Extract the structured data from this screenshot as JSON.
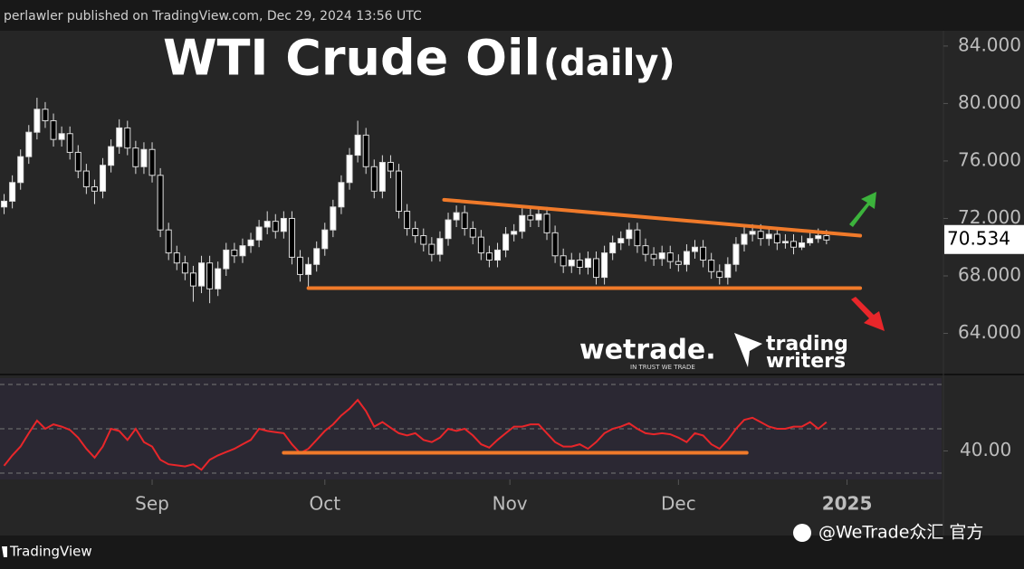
{
  "header": "perlawler published on TradingView.com, Dec 29, 2024 13:56 UTC",
  "footer": "TradingView",
  "watermark": "@WeTrade众汇 官方",
  "logos": {
    "wetrade": "wetrade.",
    "wetrade_tagline": "IN TRUST WE TRADE",
    "writers_1": "trading",
    "writers_2": "writers"
  },
  "chart_data": {
    "type": "candlestick",
    "title": "WTI Crude Oil",
    "subtitle": "(daily)",
    "ohlc": [
      [
        72.8,
        73.7,
        72.3,
        73.2
      ],
      [
        73.2,
        75.0,
        72.7,
        74.5
      ],
      [
        74.5,
        76.8,
        74.0,
        76.3
      ],
      [
        76.3,
        78.5,
        75.8,
        78.0
      ],
      [
        78.0,
        80.4,
        77.5,
        79.6
      ],
      [
        79.6,
        80.1,
        78.3,
        78.8
      ],
      [
        78.8,
        79.3,
        77.0,
        77.5
      ],
      [
        77.5,
        78.4,
        77.0,
        77.9
      ],
      [
        77.9,
        78.4,
        76.1,
        76.6
      ],
      [
        76.6,
        77.1,
        74.8,
        75.3
      ],
      [
        75.3,
        75.8,
        73.7,
        74.2
      ],
      [
        74.2,
        74.7,
        73.0,
        73.9
      ],
      [
        73.9,
        76.2,
        73.4,
        75.7
      ],
      [
        75.7,
        77.5,
        75.2,
        77.0
      ],
      [
        77.0,
        78.9,
        76.5,
        78.3
      ],
      [
        78.3,
        78.8,
        76.4,
        76.9
      ],
      [
        76.9,
        77.4,
        75.1,
        75.6
      ],
      [
        75.6,
        77.3,
        75.1,
        76.8
      ],
      [
        76.8,
        77.3,
        74.5,
        75.0
      ],
      [
        75.0,
        75.5,
        70.7,
        71.2
      ],
      [
        71.2,
        71.7,
        69.1,
        69.6
      ],
      [
        69.6,
        70.1,
        68.4,
        68.9
      ],
      [
        68.9,
        69.4,
        67.7,
        68.2
      ],
      [
        68.2,
        68.7,
        66.2,
        67.3
      ],
      [
        67.3,
        69.4,
        66.8,
        68.9
      ],
      [
        68.9,
        69.4,
        66.1,
        67.1
      ],
      [
        67.1,
        69.0,
        66.6,
        68.5
      ],
      [
        68.5,
        70.3,
        68.0,
        69.8
      ],
      [
        69.8,
        70.3,
        68.9,
        69.4
      ],
      [
        69.4,
        70.6,
        68.9,
        70.1
      ],
      [
        70.1,
        71.0,
        69.6,
        70.5
      ],
      [
        70.5,
        71.9,
        70.0,
        71.4
      ],
      [
        71.4,
        72.5,
        70.9,
        71.8
      ],
      [
        71.8,
        72.3,
        70.6,
        71.1
      ],
      [
        71.1,
        72.5,
        70.6,
        72.0
      ],
      [
        72.0,
        72.5,
        68.8,
        69.3
      ],
      [
        69.3,
        69.8,
        67.6,
        68.1
      ],
      [
        68.1,
        69.3,
        67.1,
        68.8
      ],
      [
        68.8,
        70.4,
        68.3,
        69.9
      ],
      [
        69.9,
        71.7,
        69.4,
        71.2
      ],
      [
        71.2,
        73.3,
        70.7,
        72.8
      ],
      [
        72.8,
        75.0,
        72.3,
        74.5
      ],
      [
        74.5,
        76.9,
        74.0,
        76.4
      ],
      [
        76.4,
        78.8,
        75.9,
        77.8
      ],
      [
        77.8,
        78.3,
        75.1,
        75.6
      ],
      [
        75.6,
        76.1,
        73.4,
        73.9
      ],
      [
        73.9,
        76.4,
        73.4,
        75.9
      ],
      [
        75.9,
        76.4,
        74.8,
        75.3
      ],
      [
        75.3,
        75.8,
        72.0,
        72.5
      ],
      [
        72.5,
        73.0,
        70.8,
        71.3
      ],
      [
        71.3,
        71.8,
        70.3,
        70.8
      ],
      [
        70.8,
        71.3,
        69.7,
        70.2
      ],
      [
        70.2,
        70.7,
        69.0,
        69.5
      ],
      [
        69.5,
        71.1,
        69.0,
        70.6
      ],
      [
        70.6,
        72.4,
        70.1,
        71.9
      ],
      [
        71.9,
        72.9,
        71.4,
        72.4
      ],
      [
        72.4,
        72.9,
        70.8,
        71.3
      ],
      [
        71.3,
        71.8,
        70.2,
        70.7
      ],
      [
        70.7,
        71.2,
        69.1,
        69.6
      ],
      [
        69.6,
        70.1,
        68.6,
        69.1
      ],
      [
        69.1,
        70.3,
        68.6,
        69.8
      ],
      [
        69.8,
        71.4,
        69.3,
        70.9
      ],
      [
        70.9,
        71.6,
        70.4,
        71.1
      ],
      [
        71.1,
        72.7,
        70.6,
        72.2
      ],
      [
        72.2,
        72.7,
        71.4,
        71.9
      ],
      [
        71.9,
        72.8,
        71.4,
        72.3
      ],
      [
        72.3,
        72.8,
        70.5,
        71.0
      ],
      [
        71.0,
        71.5,
        68.9,
        69.4
      ],
      [
        69.4,
        69.9,
        68.2,
        68.7
      ],
      [
        68.7,
        69.6,
        68.2,
        69.1
      ],
      [
        69.1,
        69.6,
        68.1,
        68.6
      ],
      [
        68.6,
        69.7,
        68.1,
        69.2
      ],
      [
        69.2,
        69.7,
        67.4,
        67.9
      ],
      [
        67.9,
        70.1,
        67.4,
        69.6
      ],
      [
        69.6,
        70.8,
        69.1,
        70.3
      ],
      [
        70.3,
        71.1,
        69.8,
        70.6
      ],
      [
        70.6,
        71.7,
        70.1,
        71.2
      ],
      [
        71.2,
        71.7,
        69.6,
        70.1
      ],
      [
        70.1,
        70.6,
        69.0,
        69.5
      ],
      [
        69.5,
        70.0,
        68.7,
        69.2
      ],
      [
        69.2,
        70.1,
        68.7,
        69.6
      ],
      [
        69.6,
        70.1,
        68.5,
        69.0
      ],
      [
        69.0,
        69.5,
        68.3,
        68.8
      ],
      [
        68.8,
        70.2,
        68.3,
        69.7
      ],
      [
        69.7,
        70.5,
        69.2,
        70.0
      ],
      [
        70.0,
        70.5,
        68.6,
        69.1
      ],
      [
        69.1,
        69.6,
        67.8,
        68.3
      ],
      [
        68.3,
        68.8,
        67.4,
        67.9
      ],
      [
        67.9,
        69.3,
        67.4,
        68.8
      ],
      [
        68.8,
        70.7,
        68.3,
        70.2
      ],
      [
        70.2,
        71.4,
        69.7,
        70.9
      ],
      [
        70.9,
        71.6,
        70.4,
        71.1
      ],
      [
        71.1,
        71.6,
        70.1,
        70.6
      ],
      [
        70.6,
        71.4,
        70.1,
        70.9
      ],
      [
        70.9,
        71.4,
        69.8,
        70.3
      ],
      [
        70.3,
        70.9,
        69.9,
        70.4
      ],
      [
        70.4,
        70.9,
        69.5,
        70.0
      ],
      [
        70.0,
        70.8,
        69.8,
        70.3
      ],
      [
        70.3,
        71.1,
        70.1,
        70.6
      ],
      [
        70.6,
        71.3,
        70.3,
        70.8
      ],
      [
        70.8,
        71.2,
        70.2,
        70.5
      ]
    ],
    "up_color": "#ffffff",
    "down_color": "#000000",
    "last_price": 70.534,
    "xlim": [
      -0.5,
      114
    ],
    "xticks": [
      {
        "value": 18,
        "label": "Sep"
      },
      {
        "value": 39,
        "label": "Oct"
      },
      {
        "value": 61.5,
        "label": "Nov"
      },
      {
        "value": 82,
        "label": "Dec"
      },
      {
        "value": 102.5,
        "label": "2025"
      }
    ],
    "ylim": [
      61.2,
      85.0
    ],
    "yticks": [
      {
        "value": 84,
        "label": "84.000"
      },
      {
        "value": 80,
        "label": "80.000"
      },
      {
        "value": 76,
        "label": "76.000"
      },
      {
        "value": 72,
        "label": "72.000"
      },
      {
        "value": 68,
        "label": "68.000"
      },
      {
        "value": 64,
        "label": "64.000"
      }
    ],
    "trendlines": [
      {
        "x": [
          53.5,
          104.1
        ],
        "y": [
          73.3,
          70.8
        ]
      },
      {
        "x": [
          37,
          104.1
        ],
        "y": [
          67.15,
          67.15
        ]
      }
    ],
    "trend_color": "#f07a2a",
    "rsi": {
      "color": "#e8262a",
      "values": [
        33.3,
        38,
        42,
        48,
        53.7,
        50,
        52,
        51,
        49.5,
        46,
        41,
        37,
        42,
        50,
        49,
        45,
        50,
        44,
        42,
        36,
        34,
        33.5,
        33,
        34,
        31.5,
        36,
        38,
        39.5,
        41,
        43,
        45,
        50,
        49,
        48.5,
        48,
        43,
        39,
        41,
        45,
        49,
        52,
        56,
        59,
        63,
        58,
        51,
        53,
        50.5,
        48,
        47,
        48,
        45,
        44,
        46,
        50,
        49,
        50,
        47,
        43,
        41.5,
        45,
        48,
        51,
        51,
        52,
        52,
        48,
        44,
        42,
        42,
        43,
        41,
        44,
        48,
        50,
        51,
        52.5,
        50,
        48,
        47.5,
        48,
        47.5,
        46,
        44,
        48,
        47,
        43,
        41,
        45,
        50,
        54,
        55,
        53,
        51,
        50,
        50,
        51,
        51,
        53,
        50,
        53
      ]
    },
    "y2lim": [
      30,
      70
    ],
    "y2ticks": [
      {
        "value": 40,
        "label": "40.00"
      }
    ],
    "rsi_levels": [
      30,
      50,
      70
    ],
    "rsi_trendline": {
      "x": [
        34,
        90.3
      ],
      "y": [
        39.2,
        39.2
      ]
    }
  }
}
